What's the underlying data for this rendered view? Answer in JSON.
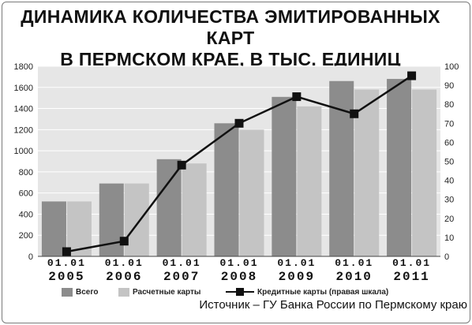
{
  "title": "ДИНАМИКА КОЛИЧЕСТВА ЭМИТИРОВАННЫХ КАРТ\nВ ПЕРМСКОМ КРАЕ, В ТЫС. ЕДИНИЦ",
  "source": "Источник – ГУ Банка России по Пермскому краю",
  "colors": {
    "total": "#8c8c8c",
    "settlement": "#c4c4c4",
    "credit": "#111111",
    "plot_bg": "#e6e6e6",
    "grid": "#ffffff"
  },
  "chart_data": {
    "type": "bar",
    "categories": [
      {
        "day": "01.01",
        "year": "2005"
      },
      {
        "day": "01.01",
        "year": "2006"
      },
      {
        "day": "01.01",
        "year": "2007"
      },
      {
        "day": "01.01",
        "year": "2008"
      },
      {
        "day": "01.01",
        "year": "2009"
      },
      {
        "day": "01.01",
        "year": "2010"
      },
      {
        "day": "01.01",
        "year": "2011"
      }
    ],
    "series": [
      {
        "name": "Всего",
        "type": "bar",
        "axis": "left",
        "values": [
          520,
          690,
          920,
          1260,
          1510,
          1660,
          1680
        ]
      },
      {
        "name": "Расчетные карты",
        "type": "bar",
        "axis": "left",
        "values": [
          520,
          690,
          880,
          1200,
          1420,
          1580,
          1580
        ]
      },
      {
        "name": "Кредитные карты (правая шкала)",
        "type": "line",
        "axis": "right",
        "values": [
          2.5,
          8,
          48,
          70,
          84,
          75,
          95
        ]
      }
    ],
    "left_axis": {
      "min": 0,
      "max": 1800,
      "ticks": [
        "0",
        "200",
        "400",
        "600",
        "800",
        "1000",
        "1200",
        "1400",
        "1600",
        "1800"
      ]
    },
    "right_axis": {
      "min": 0,
      "max": 100,
      "ticks": [
        "0",
        "10",
        "20",
        "30",
        "40",
        "50",
        "60",
        "70",
        "80",
        "90",
        "100"
      ]
    },
    "grid": true,
    "legend_position": "bottom"
  }
}
